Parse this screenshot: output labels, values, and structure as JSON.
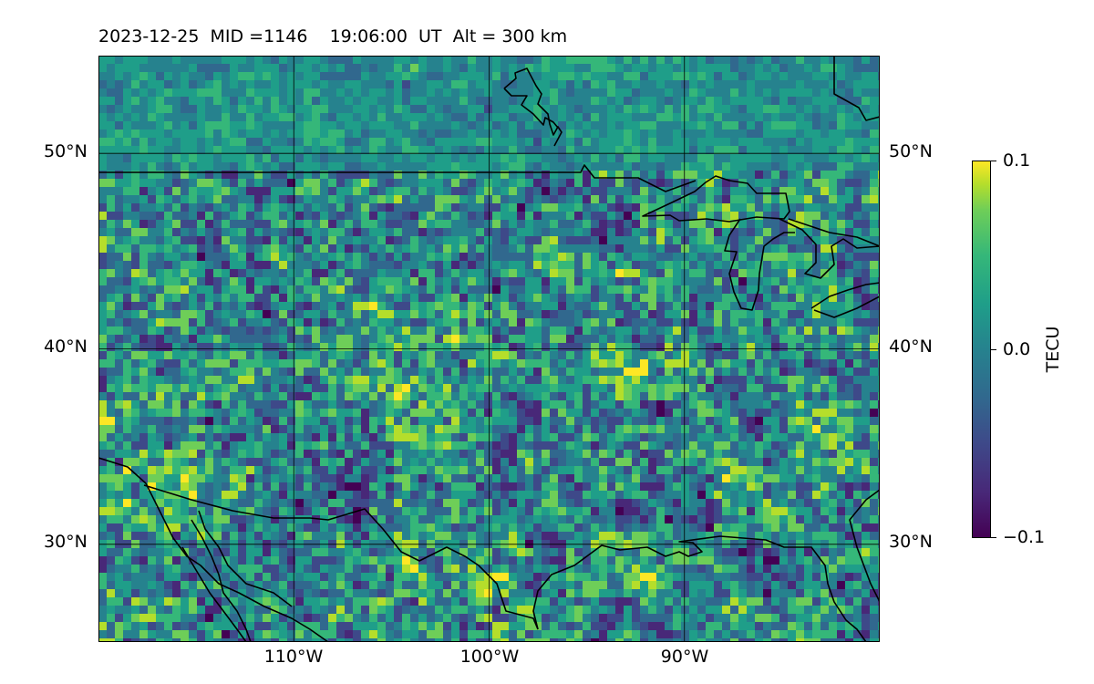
{
  "map": {
    "title": "2023-12-25  MID =1146    19:06:00  UT  Alt = 300 km",
    "extent": {
      "lon_min": -120,
      "lon_max": -80,
      "lat_min": 25,
      "lat_max": 55
    },
    "lat_ticks": [
      {
        "value": 50,
        "label": "50°N"
      },
      {
        "value": 40,
        "label": "40°N"
      },
      {
        "value": 30,
        "label": "30°N"
      }
    ],
    "lon_ticks": [
      {
        "value": -110,
        "label": "110°W"
      },
      {
        "value": -100,
        "label": "100°W"
      },
      {
        "value": -90,
        "label": "90°W"
      }
    ],
    "gridlines": true,
    "colormap": "viridis"
  },
  "colorbar": {
    "label": "TECU",
    "min": -0.1,
    "max": 0.1,
    "ticks": [
      {
        "value": 0.1,
        "label": "0.1"
      },
      {
        "value": 0.0,
        "label": "0.0"
      },
      {
        "value": -0.1,
        "label": "−0.1"
      }
    ],
    "colors": [
      "#440154",
      "#482878",
      "#3e4989",
      "#31688e",
      "#26828e",
      "#1f9e89",
      "#35b779",
      "#6ece58",
      "#b5de2b",
      "#fde725"
    ]
  }
}
